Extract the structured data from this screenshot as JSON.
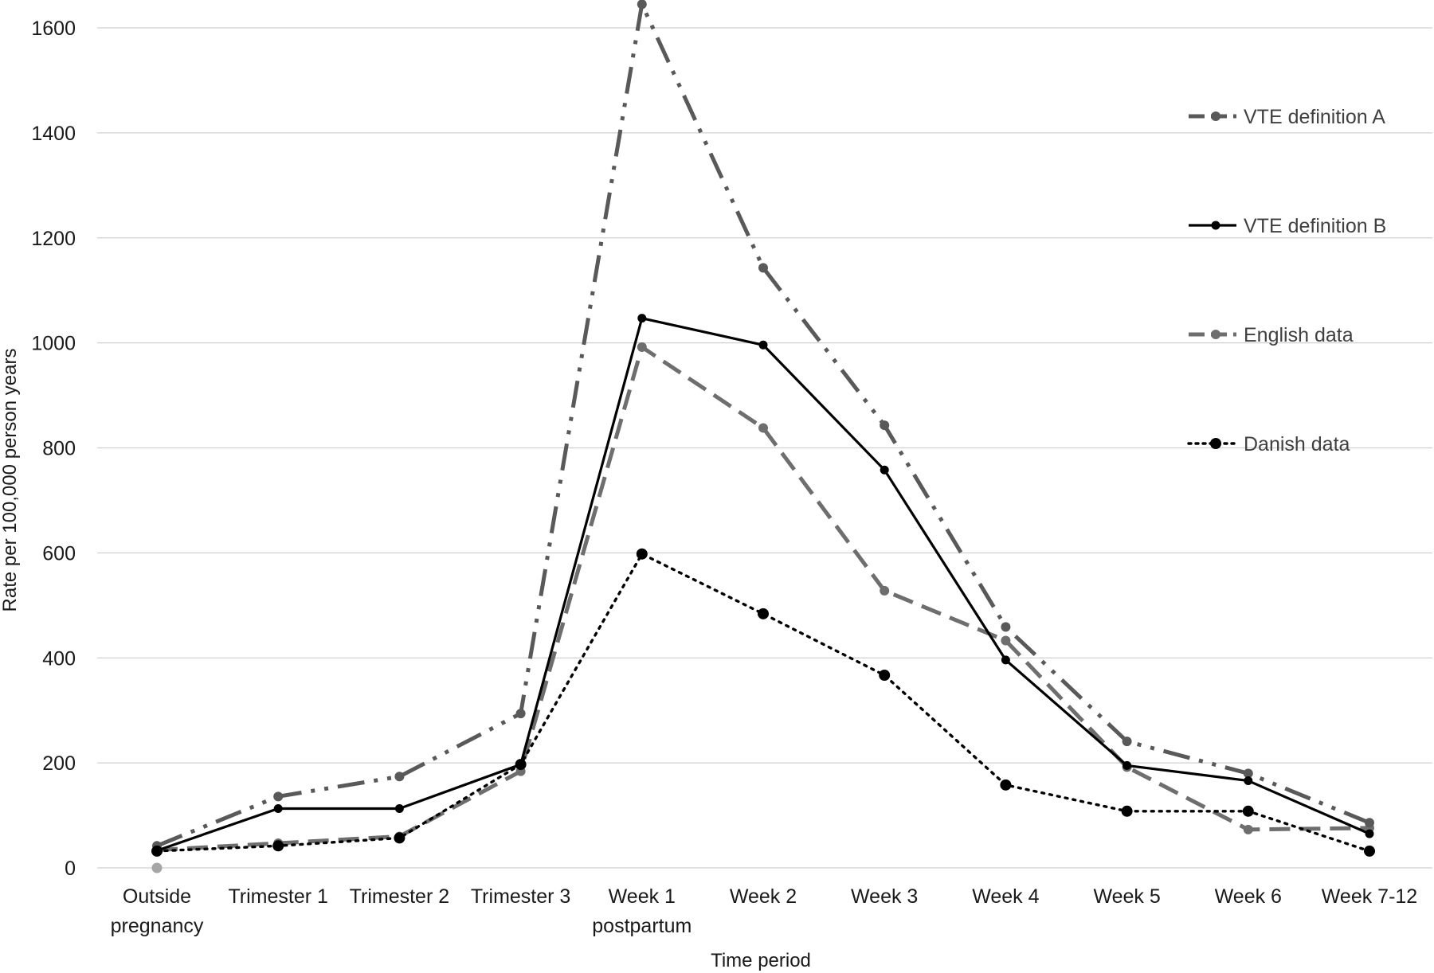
{
  "chart_data": {
    "type": "line",
    "title": "",
    "xlabel": "Time period",
    "ylabel": "Rate per 100,000 person years",
    "ylim": [
      0,
      1600
    ],
    "yticks": [
      0,
      200,
      400,
      600,
      800,
      1000,
      1200,
      1400,
      1600
    ],
    "grid": true,
    "legend_position": "right",
    "categories": [
      [
        "Outside",
        "pregnancy"
      ],
      [
        "Trimester 1"
      ],
      [
        "Trimester 2"
      ],
      [
        "Trimester 3"
      ],
      [
        "Week 1",
        "postpartum"
      ],
      [
        "Week 2"
      ],
      [
        "Week 3"
      ],
      [
        "Week 4"
      ],
      [
        "Week 5"
      ],
      [
        "Week 6"
      ],
      [
        "Week 7-12"
      ]
    ],
    "series": [
      {
        "name": "VTE definition A",
        "style": "dash-dot-dot",
        "color": "#595959",
        "values": [
          42,
          136,
          174,
          294,
          1645,
          1143,
          843,
          459,
          241,
          180,
          86
        ]
      },
      {
        "name": "VTE definition B",
        "style": "solid",
        "color": "#000000",
        "values": [
          33,
          113,
          113,
          197,
          1047,
          996,
          758,
          396,
          195,
          166,
          65
        ]
      },
      {
        "name": "English data",
        "style": "dash",
        "color": "#6e6e6e",
        "values": [
          34,
          47,
          60,
          184,
          992,
          838,
          528,
          433,
          192,
          73,
          76
        ]
      },
      {
        "name": "Danish data",
        "style": "dot",
        "color": "#000000",
        "values": [
          32,
          42,
          57,
          197,
          598,
          484,
          367,
          158,
          108,
          108,
          32
        ]
      }
    ],
    "annotations": [
      {
        "name": "Outside pregnancy marker",
        "category_index": 0,
        "value": 0,
        "color": "#a6a6a6"
      }
    ]
  }
}
